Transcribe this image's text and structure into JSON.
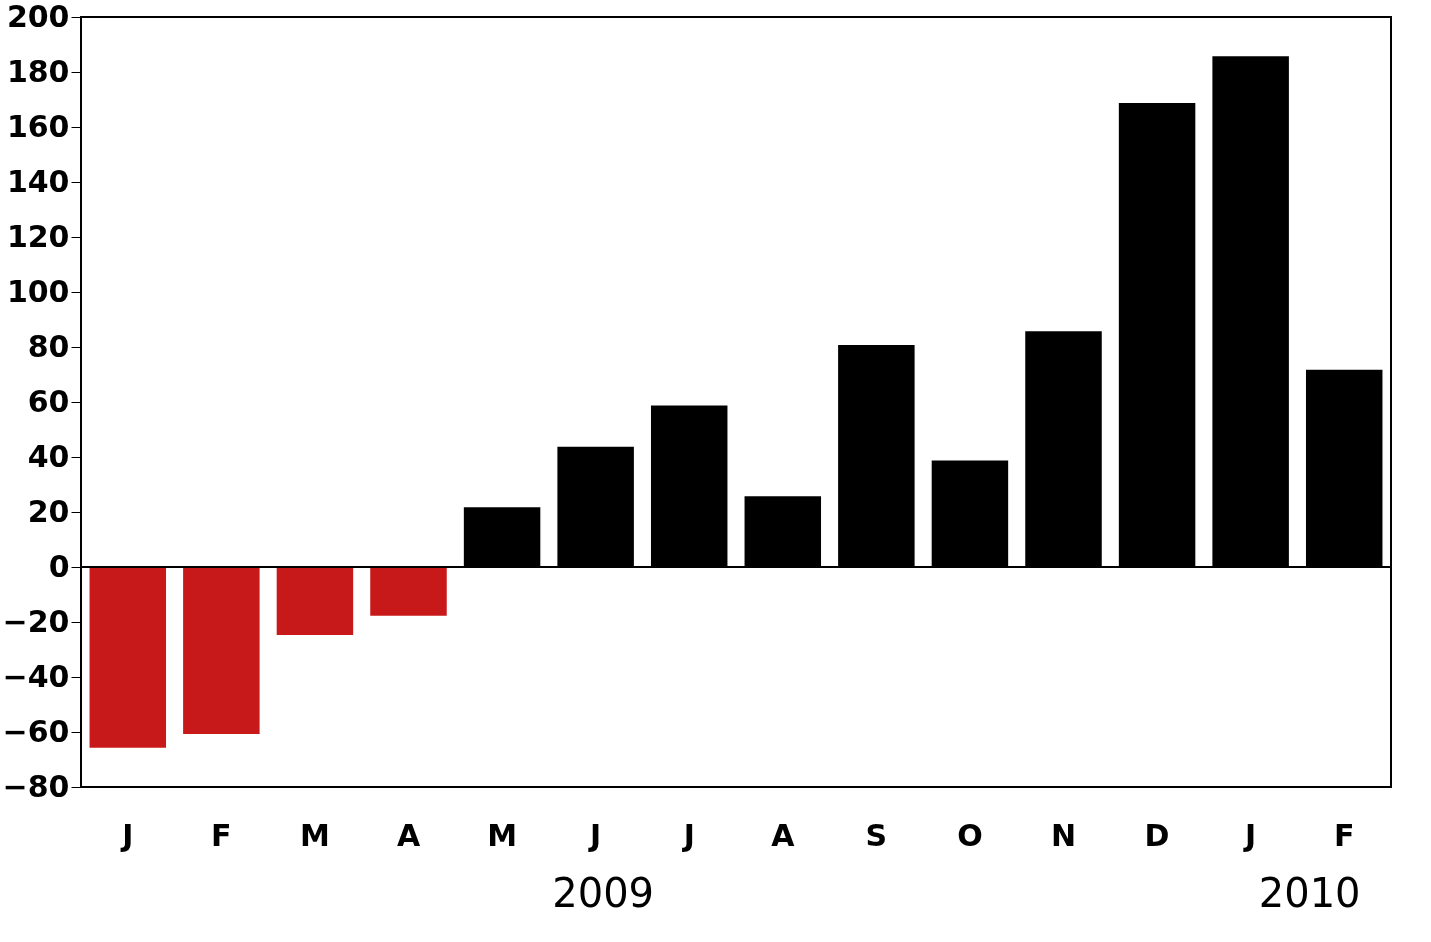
{
  "chart_data": {
    "type": "bar",
    "categories": [
      "J",
      "F",
      "M",
      "A",
      "M",
      "J",
      "J",
      "A",
      "S",
      "O",
      "N",
      "D",
      "J",
      "F"
    ],
    "values": [
      -66,
      -61,
      -25,
      -18,
      22,
      44,
      59,
      26,
      81,
      39,
      86,
      169,
      186,
      72
    ],
    "colors": [
      "#c8191a",
      "#c8191a",
      "#c8191a",
      "#c8191a",
      "#000000",
      "#000000",
      "#000000",
      "#000000",
      "#000000",
      "#000000",
      "#000000",
      "#000000",
      "#000000",
      "#000000"
    ],
    "ylim": [
      -80,
      200
    ],
    "yticks": [
      -80,
      -60,
      -40,
      -20,
      0,
      20,
      40,
      60,
      80,
      100,
      120,
      140,
      160,
      180,
      200
    ],
    "ref_lines": [
      {
        "axis": "y",
        "value": 0,
        "label": null
      }
    ],
    "annotations": [
      "2009",
      "2010"
    ],
    "grid": false
  }
}
